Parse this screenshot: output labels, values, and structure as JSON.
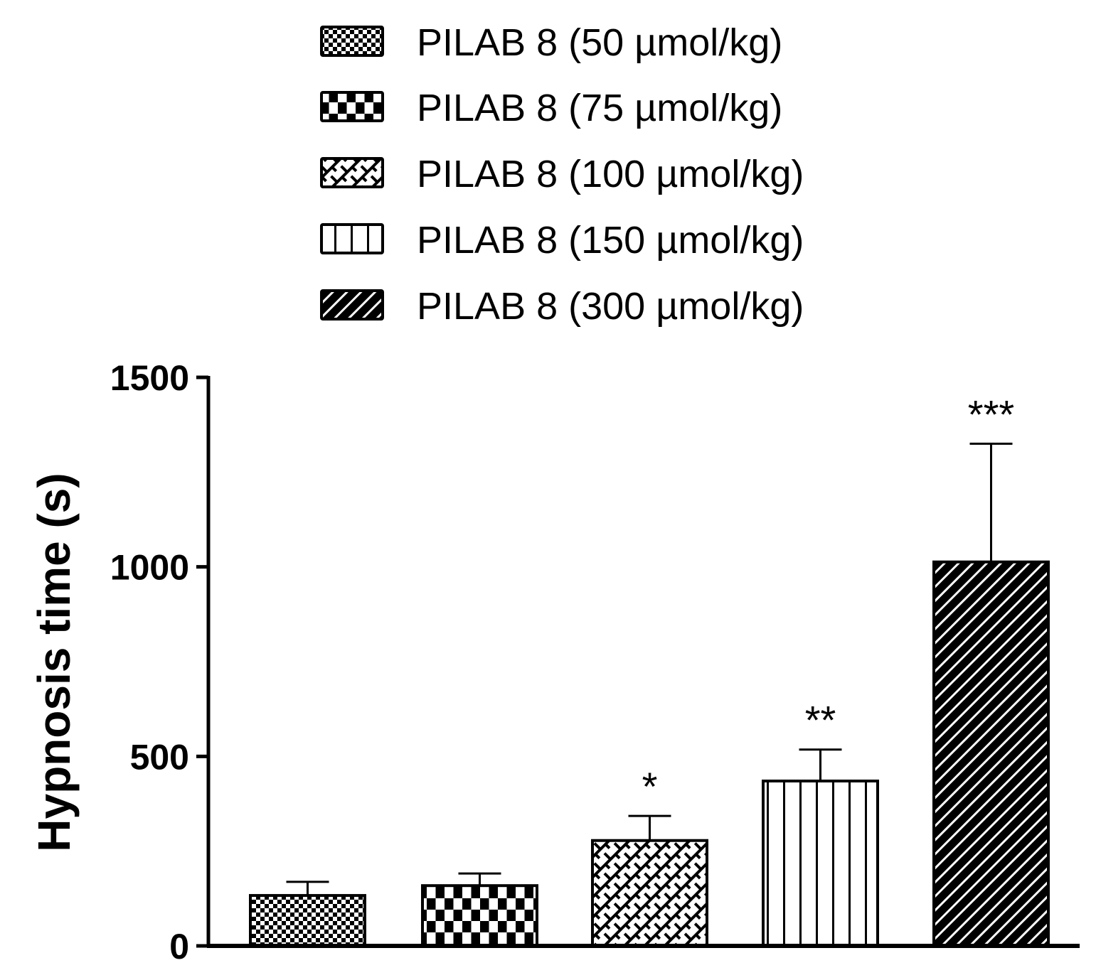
{
  "chart_data": {
    "type": "bar",
    "title": "",
    "xlabel": "",
    "ylabel": "Hypnosis time (s)",
    "ylim": [
      0,
      1500
    ],
    "yticks": [
      0,
      500,
      1000,
      1500
    ],
    "ytick_labels": [
      "0",
      "500",
      "1000",
      "1500"
    ],
    "grid": false,
    "legend_placement": "top",
    "categories": [
      "PILAB 8 (50 µmol/kg)",
      "PILAB 8 (75 µmol/kg)",
      "PILAB 8 (100 µmol/kg)",
      "PILAB 8 (150 µmol/kg)",
      "PILAB 8 (300 µmol/kg)"
    ],
    "series": [
      {
        "name": "Hypnosis time",
        "values": [
          133,
          159,
          278,
          435,
          1013
        ],
        "error": [
          36,
          32,
          65,
          83,
          312
        ]
      }
    ],
    "annotations": [
      "",
      "",
      "*",
      "**",
      "***"
    ],
    "patterns": [
      "fine-checker",
      "coarse-checker",
      "brick-diagonal",
      "vertical-lines",
      "diagonal-dark"
    ]
  }
}
